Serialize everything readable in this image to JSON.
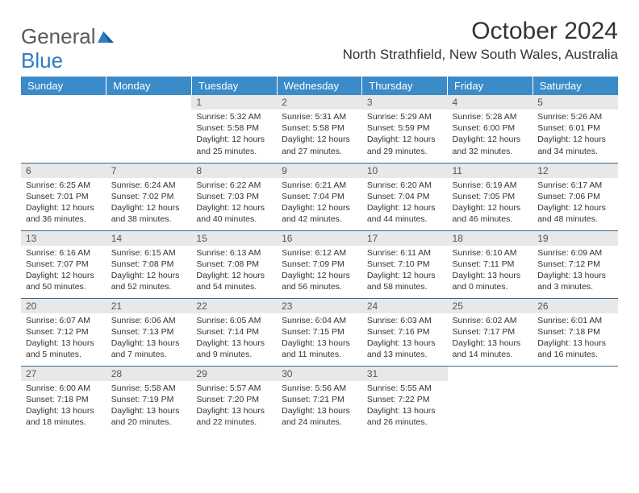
{
  "logo": {
    "text1": "General",
    "text2": "Blue"
  },
  "title": "October 2024",
  "location": "North Strathfield, New South Wales, Australia",
  "colors": {
    "header_bg": "#3b8bc9",
    "header_text": "#ffffff",
    "daynum_bg": "#e8e8e8",
    "row_border": "#3b6a8f",
    "logo_accent": "#2e7cc2"
  },
  "day_headers": [
    "Sunday",
    "Monday",
    "Tuesday",
    "Wednesday",
    "Thursday",
    "Friday",
    "Saturday"
  ],
  "weeks": [
    [
      null,
      null,
      {
        "n": "1",
        "sr": "5:32 AM",
        "ss": "5:58 PM",
        "dl": "12 hours and 25 minutes."
      },
      {
        "n": "2",
        "sr": "5:31 AM",
        "ss": "5:58 PM",
        "dl": "12 hours and 27 minutes."
      },
      {
        "n": "3",
        "sr": "5:29 AM",
        "ss": "5:59 PM",
        "dl": "12 hours and 29 minutes."
      },
      {
        "n": "4",
        "sr": "5:28 AM",
        "ss": "6:00 PM",
        "dl": "12 hours and 32 minutes."
      },
      {
        "n": "5",
        "sr": "5:26 AM",
        "ss": "6:01 PM",
        "dl": "12 hours and 34 minutes."
      }
    ],
    [
      {
        "n": "6",
        "sr": "6:25 AM",
        "ss": "7:01 PM",
        "dl": "12 hours and 36 minutes."
      },
      {
        "n": "7",
        "sr": "6:24 AM",
        "ss": "7:02 PM",
        "dl": "12 hours and 38 minutes."
      },
      {
        "n": "8",
        "sr": "6:22 AM",
        "ss": "7:03 PM",
        "dl": "12 hours and 40 minutes."
      },
      {
        "n": "9",
        "sr": "6:21 AM",
        "ss": "7:04 PM",
        "dl": "12 hours and 42 minutes."
      },
      {
        "n": "10",
        "sr": "6:20 AM",
        "ss": "7:04 PM",
        "dl": "12 hours and 44 minutes."
      },
      {
        "n": "11",
        "sr": "6:19 AM",
        "ss": "7:05 PM",
        "dl": "12 hours and 46 minutes."
      },
      {
        "n": "12",
        "sr": "6:17 AM",
        "ss": "7:06 PM",
        "dl": "12 hours and 48 minutes."
      }
    ],
    [
      {
        "n": "13",
        "sr": "6:16 AM",
        "ss": "7:07 PM",
        "dl": "12 hours and 50 minutes."
      },
      {
        "n": "14",
        "sr": "6:15 AM",
        "ss": "7:08 PM",
        "dl": "12 hours and 52 minutes."
      },
      {
        "n": "15",
        "sr": "6:13 AM",
        "ss": "7:08 PM",
        "dl": "12 hours and 54 minutes."
      },
      {
        "n": "16",
        "sr": "6:12 AM",
        "ss": "7:09 PM",
        "dl": "12 hours and 56 minutes."
      },
      {
        "n": "17",
        "sr": "6:11 AM",
        "ss": "7:10 PM",
        "dl": "12 hours and 58 minutes."
      },
      {
        "n": "18",
        "sr": "6:10 AM",
        "ss": "7:11 PM",
        "dl": "13 hours and 0 minutes."
      },
      {
        "n": "19",
        "sr": "6:09 AM",
        "ss": "7:12 PM",
        "dl": "13 hours and 3 minutes."
      }
    ],
    [
      {
        "n": "20",
        "sr": "6:07 AM",
        "ss": "7:12 PM",
        "dl": "13 hours and 5 minutes."
      },
      {
        "n": "21",
        "sr": "6:06 AM",
        "ss": "7:13 PM",
        "dl": "13 hours and 7 minutes."
      },
      {
        "n": "22",
        "sr": "6:05 AM",
        "ss": "7:14 PM",
        "dl": "13 hours and 9 minutes."
      },
      {
        "n": "23",
        "sr": "6:04 AM",
        "ss": "7:15 PM",
        "dl": "13 hours and 11 minutes."
      },
      {
        "n": "24",
        "sr": "6:03 AM",
        "ss": "7:16 PM",
        "dl": "13 hours and 13 minutes."
      },
      {
        "n": "25",
        "sr": "6:02 AM",
        "ss": "7:17 PM",
        "dl": "13 hours and 14 minutes."
      },
      {
        "n": "26",
        "sr": "6:01 AM",
        "ss": "7:18 PM",
        "dl": "13 hours and 16 minutes."
      }
    ],
    [
      {
        "n": "27",
        "sr": "6:00 AM",
        "ss": "7:18 PM",
        "dl": "13 hours and 18 minutes."
      },
      {
        "n": "28",
        "sr": "5:58 AM",
        "ss": "7:19 PM",
        "dl": "13 hours and 20 minutes."
      },
      {
        "n": "29",
        "sr": "5:57 AM",
        "ss": "7:20 PM",
        "dl": "13 hours and 22 minutes."
      },
      {
        "n": "30",
        "sr": "5:56 AM",
        "ss": "7:21 PM",
        "dl": "13 hours and 24 minutes."
      },
      {
        "n": "31",
        "sr": "5:55 AM",
        "ss": "7:22 PM",
        "dl": "13 hours and 26 minutes."
      },
      null,
      null
    ]
  ],
  "labels": {
    "sunrise": "Sunrise:",
    "sunset": "Sunset:",
    "daylight": "Daylight:"
  }
}
